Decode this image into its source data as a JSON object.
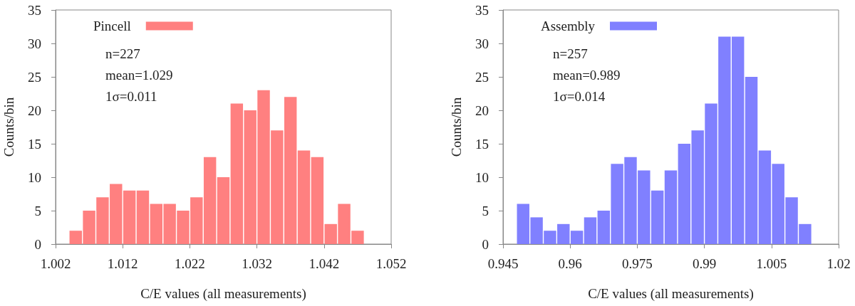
{
  "chart_data": [
    {
      "type": "histogram",
      "xlabel": "C/E values (all measurements)",
      "ylabel": "Counts/bin",
      "bins": [
        1.004,
        1.006,
        1.008,
        1.01,
        1.012,
        1.014,
        1.016,
        1.018,
        1.02,
        1.022,
        1.024,
        1.026,
        1.028,
        1.03,
        1.032,
        1.034,
        1.036,
        1.038,
        1.04,
        1.042,
        1.044,
        1.046,
        1.048
      ],
      "series": [
        {
          "name": "Pincell",
          "color": "#ff8080",
          "values": [
            2,
            5,
            7,
            9,
            8,
            8,
            6,
            6,
            5,
            7,
            13,
            10,
            21,
            20,
            23,
            17,
            22,
            14,
            13,
            3,
            6,
            2
          ]
        }
      ],
      "xlim": [
        1.002,
        1.052
      ],
      "xticks": [
        1.002,
        1.012,
        1.022,
        1.032,
        1.042,
        1.052
      ],
      "ylim": [
        0,
        35
      ],
      "yticks": [
        0,
        5,
        10,
        15,
        20,
        25,
        30,
        35
      ],
      "legend": "top left",
      "annotations": [
        "n=227",
        "mean=1.029",
        "1σ=0.011"
      ]
    },
    {
      "type": "histogram",
      "xlabel": "C/E values (all measurements)",
      "ylabel": "Counts/bin",
      "bins": [
        0.948,
        0.951,
        0.954,
        0.957,
        0.96,
        0.963,
        0.966,
        0.969,
        0.972,
        0.975,
        0.978,
        0.981,
        0.984,
        0.987,
        0.99,
        0.993,
        0.996,
        0.999,
        1.002,
        1.005,
        1.008,
        1.011,
        1.014
      ],
      "series": [
        {
          "name": "Assembly",
          "color": "#8080ff",
          "values": [
            6,
            4,
            2,
            3,
            2,
            4,
            5,
            12,
            13,
            11,
            8,
            11,
            15,
            17,
            21,
            31,
            31,
            25,
            14,
            12,
            7,
            3
          ]
        }
      ],
      "xlim": [
        0.945,
        1.02
      ],
      "xticks": [
        0.945,
        0.96,
        0.975,
        0.99,
        1.005,
        1.02
      ],
      "ylim": [
        0,
        35
      ],
      "yticks": [
        0,
        5,
        10,
        15,
        20,
        25,
        30,
        35
      ],
      "legend": "top left",
      "annotations": [
        "n=257",
        "mean=0.989",
        "1σ=0.014"
      ]
    }
  ]
}
